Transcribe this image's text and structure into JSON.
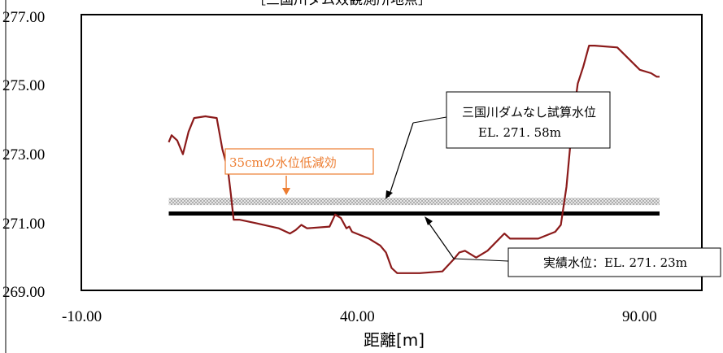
{
  "chart_data": {
    "type": "line",
    "title": "［三国川ダム效観測所地点］",
    "xlabel": "距離[m]",
    "ylabel": "",
    "xlim": [
      -10,
      100
    ],
    "ylim": [
      269,
      277
    ],
    "xticks": [
      "-10.00",
      "40.00",
      "90.00"
    ],
    "xtick_values": [
      -10,
      40,
      90
    ],
    "yticks": [
      "277.00",
      "275.00",
      "273.00",
      "271.00",
      "269.00"
    ],
    "ytick_values": [
      277,
      275,
      273,
      271,
      269
    ],
    "grid": false,
    "series": [
      {
        "kind": "terrain",
        "color": "#8b1a1a",
        "x": [
          5.5,
          6,
          7,
          8,
          9,
          10,
          12,
          14,
          15,
          16,
          16.5,
          17,
          18,
          21,
          25,
          27,
          28,
          29,
          30,
          34,
          35,
          36,
          37,
          37.5,
          38,
          41,
          43,
          44,
          45,
          46,
          50,
          54,
          56,
          57,
          58,
          60,
          62,
          65,
          66,
          68,
          71,
          74,
          75,
          76,
          77,
          78,
          79,
          80,
          81,
          85,
          89,
          91,
          92,
          92.5
        ],
        "y": [
          273.3,
          273.5,
          273.35,
          272.95,
          273.6,
          274.0,
          274.05,
          274.0,
          273.1,
          272.5,
          271.8,
          271.05,
          271.05,
          270.95,
          270.8,
          270.65,
          270.75,
          270.9,
          270.8,
          270.85,
          271.2,
          271.1,
          270.8,
          270.85,
          270.7,
          270.5,
          270.3,
          270.1,
          269.65,
          269.5,
          269.5,
          269.55,
          269.9,
          270.1,
          270.15,
          269.95,
          270.15,
          270.65,
          270.5,
          270.5,
          270.5,
          270.7,
          270.9,
          272.0,
          273.8,
          275.0,
          275.5,
          276.1,
          276.1,
          276.05,
          275.4,
          275.3,
          275.2,
          275.2
        ]
      },
      {
        "kind": "hline",
        "name": "実績水位",
        "y": 271.23,
        "color": "#000000"
      },
      {
        "kind": "band",
        "name": "三国川ダムなし試算水位",
        "y": 271.58,
        "color": "#b0b0b0"
      }
    ],
    "annotations": {
      "effect": "35cmの水位低減効",
      "no_dam_line1": "三国川ダムなし試算水位",
      "no_dam_line2": "EL. 271. 58m",
      "actual": "実績水位：EL. 271. 23m"
    }
  }
}
